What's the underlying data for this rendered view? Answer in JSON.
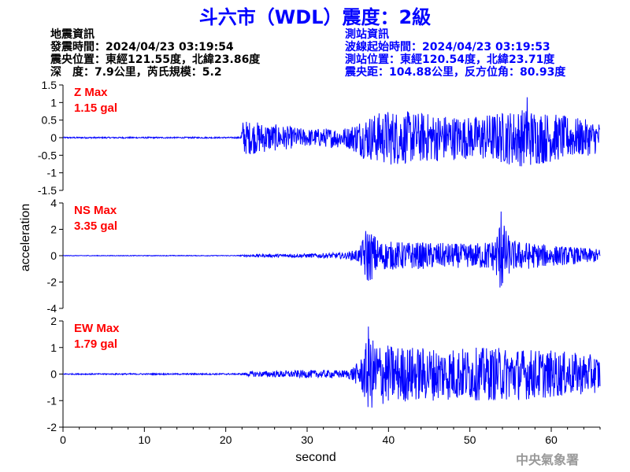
{
  "title": "斗六市（WDL）震度：2級",
  "quake_info": {
    "heading": "地震資訊",
    "time": "發震時間：2024/04/23 03:19:54",
    "location": "震央位置：東經121.55度，北緯23.86度",
    "depth_magnitude": "深　度：7.9公里，芮氏規模：5.2"
  },
  "station_info": {
    "heading": "測站資訊",
    "wave_start": "波線起始時間：2024/04/23 03:19:53",
    "location": "測站位置：東經120.54度，北緯23.71度",
    "distance_azimuth": "震央距：104.88公里，反方位角：80.93度"
  },
  "agency": "中央氣象署",
  "chart_data": {
    "type": "line",
    "xlabel": "second",
    "ylabel": "acceleration",
    "xlim": [
      0,
      66
    ],
    "xticks": [
      0,
      10,
      20,
      30,
      40,
      50,
      60
    ],
    "line_color": "#0000ff",
    "label_color": "#ff0000",
    "panels": [
      {
        "component": "Z",
        "label": "Z Max",
        "max_text": "1.15 gal",
        "ylim": [
          -1.5,
          1.5
        ],
        "yticks": [
          -1.5,
          -1,
          -0.5,
          0,
          0.5,
          1,
          1.5
        ],
        "ytick_labels": [
          "-1.5",
          "-1",
          "-0.5",
          "0",
          "0.5",
          "1",
          "1.5"
        ],
        "peak": 1.15,
        "envelope": [
          [
            0,
            0.02
          ],
          [
            21.8,
            0.02
          ],
          [
            22.1,
            0.5
          ],
          [
            24,
            0.45
          ],
          [
            30,
            0.25
          ],
          [
            35,
            0.3
          ],
          [
            37,
            0.6
          ],
          [
            40,
            0.8
          ],
          [
            50,
            0.6
          ],
          [
            57,
            0.85
          ],
          [
            60,
            0.7
          ],
          [
            66,
            0.45
          ]
        ]
      },
      {
        "component": "NS",
        "label": "NS Max",
        "max_text": "3.35 gal",
        "ylim": [
          -4,
          4
        ],
        "yticks": [
          -4,
          -2,
          0,
          2,
          4
        ],
        "ytick_labels": [
          "-4",
          "-2",
          "0",
          "2",
          "4"
        ],
        "peak": 3.35,
        "envelope": [
          [
            0,
            0.02
          ],
          [
            21.5,
            0.03
          ],
          [
            23,
            0.1
          ],
          [
            30,
            0.15
          ],
          [
            35,
            0.25
          ],
          [
            36.5,
            0.6
          ],
          [
            37.3,
            2.3
          ],
          [
            39,
            1.1
          ],
          [
            45,
            1.0
          ],
          [
            50,
            0.9
          ],
          [
            53,
            1.2
          ],
          [
            53.8,
            3.0
          ],
          [
            55,
            1.2
          ],
          [
            60,
            0.8
          ],
          [
            66,
            0.5
          ]
        ]
      },
      {
        "component": "EW",
        "label": "EW Max",
        "max_text": "1.79 gal",
        "ylim": [
          -2,
          2
        ],
        "yticks": [
          -2,
          -1,
          0,
          1,
          2
        ],
        "ytick_labels": [
          "-2",
          "-1",
          "0",
          "1",
          "2"
        ],
        "peak": 1.79,
        "envelope": [
          [
            0,
            0.02
          ],
          [
            22,
            0.03
          ],
          [
            23,
            0.1
          ],
          [
            30,
            0.15
          ],
          [
            35,
            0.15
          ],
          [
            36.5,
            0.5
          ],
          [
            37.5,
            1.4
          ],
          [
            40,
            1.1
          ],
          [
            45,
            1.0
          ],
          [
            55,
            1.0
          ],
          [
            60,
            0.9
          ],
          [
            66,
            0.7
          ]
        ]
      }
    ]
  }
}
